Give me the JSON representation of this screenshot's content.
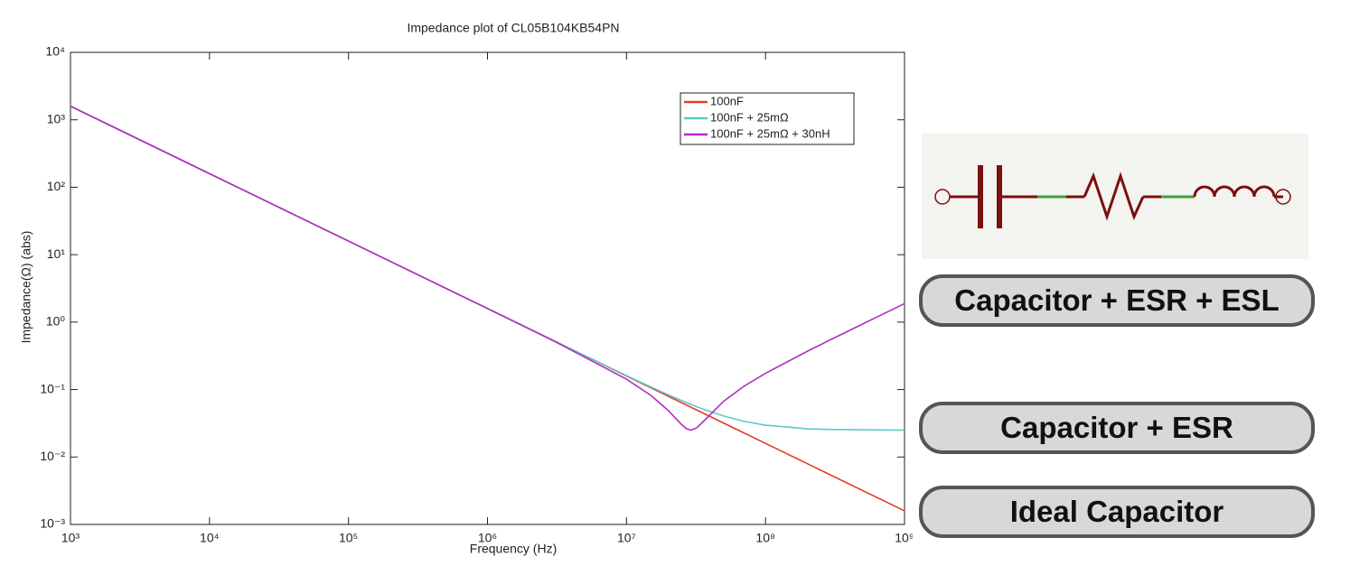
{
  "chart_data": {
    "type": "line",
    "title": "Impedance plot of CL05B104KB54PN",
    "x_label": "Frequency  (Hz)",
    "y_label": "Impedance(Ω) (abs)",
    "log_x": true,
    "log_y": true,
    "xlim": [
      1000,
      1000000000
    ],
    "ylim": [
      0.001,
      10000
    ],
    "xticks": [
      {
        "value": 1000,
        "label": "10³"
      },
      {
        "value": 10000,
        "label": "10⁴"
      },
      {
        "value": 100000,
        "label": "10⁵"
      },
      {
        "value": 1000000,
        "label": "10⁶"
      },
      {
        "value": 10000000,
        "label": "10⁷"
      },
      {
        "value": 100000000,
        "label": "10⁸"
      },
      {
        "value": 1000000000,
        "label": "10⁹"
      }
    ],
    "yticks": [
      {
        "value": 0.001,
        "label": "10⁻³"
      },
      {
        "value": 0.01,
        "label": "10⁻²"
      },
      {
        "value": 0.1,
        "label": "10⁻¹"
      },
      {
        "value": 1,
        "label": "10⁰"
      },
      {
        "value": 10,
        "label": "10¹"
      },
      {
        "value": 100,
        "label": "10²"
      },
      {
        "value": 1000,
        "label": "10³"
      },
      {
        "value": 10000,
        "label": "10⁴"
      }
    ],
    "x": [
      1000,
      10000,
      100000,
      1000000,
      3000000,
      10000000,
      15000000,
      20000000,
      25000000,
      27000000,
      29000000,
      32000000,
      35000000,
      50000000,
      70000000,
      100000000,
      200000000,
      300000000,
      1000000000
    ],
    "series": [
      {
        "name": "100nF",
        "color": "#e63a2b",
        "values": [
          1591.5,
          159.15,
          15.915,
          1.5915,
          0.5305,
          0.15915,
          0.1061,
          0.07958,
          0.06366,
          0.05894,
          0.05488,
          0.04973,
          0.04547,
          0.03183,
          0.02274,
          0.015915,
          0.007958,
          0.005305,
          0.0015915
        ]
      },
      {
        "name": "100nF + 25mΩ",
        "color": "#5fc8c4",
        "values": [
          1591.5,
          159.15,
          15.915,
          1.5917,
          0.5311,
          0.1611,
          0.109,
          0.0834,
          0.0684,
          0.064,
          0.0603,
          0.0557,
          0.0519,
          0.0405,
          0.0338,
          0.0296,
          0.0262,
          0.0256,
          0.025
        ]
      },
      {
        "name": "100nF + 25mΩ + 30nH",
        "color": "#b12fbf",
        "values": [
          1591.5,
          159.15,
          15.915,
          1.5898,
          0.5254,
          0.1425,
          0.0817,
          0.0488,
          0.03,
          0.0262,
          0.025,
          0.0271,
          0.0323,
          0.0672,
          0.1121,
          0.1744,
          0.3699,
          0.5608,
          1.8836
        ]
      }
    ],
    "legend": "upper right",
    "annotations": [
      "Capacitor + ESR + ESL",
      "Capacitor + ESR",
      "Ideal Capacitor"
    ]
  }
}
